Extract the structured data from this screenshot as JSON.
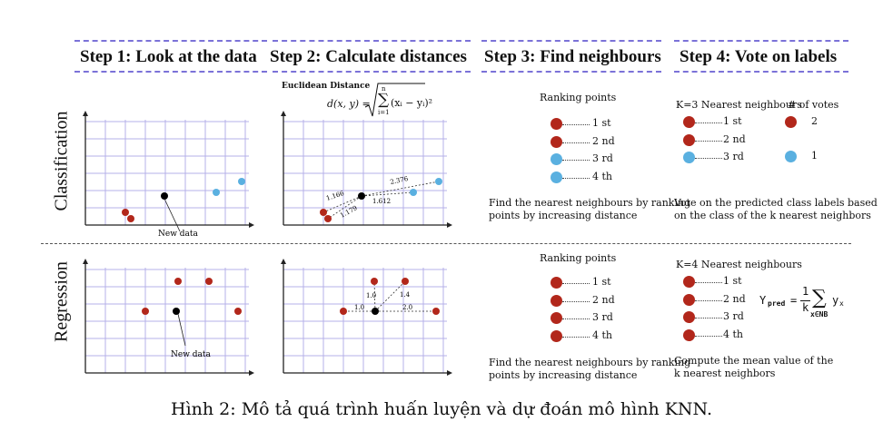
{
  "headers": {
    "step1": "Step 1: Look at the data",
    "step2": "Step 2: Calculate distances",
    "step3": "Step 3: Find neighbours",
    "step4": "Step 4: Vote on labels"
  },
  "rows": {
    "classification": "Classification",
    "regression": "Regression"
  },
  "euclid": {
    "title": "Euclidean Distance",
    "lhs": "d(x, y) =",
    "sum_top": "n",
    "sum_bottom": "i=1",
    "term": "(xᵢ − yᵢ)²"
  },
  "plots": {
    "new_data_label": "New data",
    "cls_dist_labels": [
      "2.376",
      "1.166",
      "1.612",
      "1.179"
    ],
    "reg_dist_labels": [
      "1.0",
      "1.4",
      "1.0",
      "2.0"
    ]
  },
  "colors": {
    "red": "#b2271b",
    "blue": "#5ab0e0",
    "black": "#000000",
    "grid": "#b5b0e8",
    "dash": "#7b72d8"
  },
  "class_step3": {
    "title": "Ranking points",
    "items": [
      "1 st",
      "2 nd",
      "3 rd",
      "4 th"
    ],
    "colors": [
      "red",
      "red",
      "blue",
      "blue"
    ],
    "desc_line1": "Find the nearest neighbours by ranking",
    "desc_line2": "points by increasing distance"
  },
  "class_step4": {
    "title": "K=3 Nearest neighbours",
    "votes_title": "# of votes",
    "items": [
      "1 st",
      "2 nd",
      "3 rd"
    ],
    "colors": [
      "red",
      "red",
      "blue"
    ],
    "votes": [
      {
        "color": "red",
        "count": "2"
      },
      {
        "color": "blue",
        "count": "1"
      }
    ],
    "desc_line1": "Vote on the predicted class labels based",
    "desc_line2": "on the class of the k nearest neighbors"
  },
  "reg_step3": {
    "title": "Ranking points",
    "items": [
      "1 st",
      "2 nd",
      "3 rd",
      "4 th"
    ],
    "desc_line1": "Find the nearest neighbours by ranking",
    "desc_line2": "points by increasing distance"
  },
  "reg_step4": {
    "title": "K=4 Nearest neighbours",
    "items": [
      "1 st",
      "2 nd",
      "3 rd",
      "4 th"
    ],
    "formula_lhs": "Y",
    "formula_sub": "pred",
    "formula_frac_top": "1",
    "formula_frac_bottom": "k",
    "formula_sum_sub": "x∈NB",
    "formula_term": "y",
    "formula_term_sub": "x",
    "desc_line1": "Compute the mean value of the",
    "desc_line2": "k nearest neighbors"
  },
  "caption": "Hình 2: Mô tả quá trình huấn luyện và dự đoán mô hình KNN."
}
